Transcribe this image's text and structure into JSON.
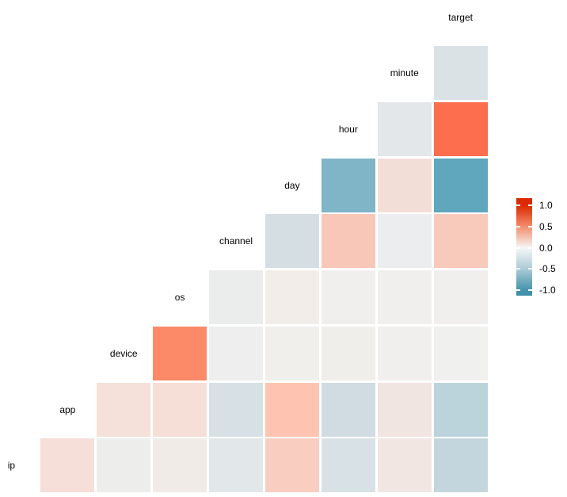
{
  "chart_data": {
    "type": "heatmap",
    "subtype": "correlation-matrix-lower-triangle",
    "title": "",
    "panel_background": "#FFFFFF",
    "variables_diagonal_top_to_bottom": [
      "target",
      "minute",
      "hour",
      "day",
      "channel",
      "os",
      "device",
      "app",
      "ip"
    ],
    "axis_order_left_to_right": [
      "ip",
      "app",
      "device",
      "os",
      "channel",
      "day",
      "hour",
      "minute",
      "target"
    ],
    "value_range": [
      -1.0,
      1.0
    ],
    "legend": {
      "position": "right",
      "tick_labels": [
        "1.0",
        "0.5",
        "0.0",
        "-0.5",
        "-1.0"
      ],
      "tick_values": [
        1.0,
        0.5,
        0.0,
        -0.5,
        -1.0
      ],
      "high_color": "#DC2B02",
      "mid_color": "#F6F7F7",
      "low_color": "#4493AB"
    },
    "cells": [
      {
        "row": "minute",
        "col": "target",
        "value": -0.1,
        "color": "#DBE2E6"
      },
      {
        "row": "hour",
        "col": "minute",
        "value": -0.06,
        "color": "#E3E7E9"
      },
      {
        "row": "hour",
        "col": "target",
        "value": 0.72,
        "color": "#FC6E4E"
      },
      {
        "row": "day",
        "col": "hour",
        "value": -0.5,
        "color": "#80B4C7"
      },
      {
        "row": "day",
        "col": "minute",
        "value": 0.1,
        "color": "#F3DED7"
      },
      {
        "row": "day",
        "col": "target",
        "value": -0.67,
        "color": "#60A6BC"
      },
      {
        "row": "channel",
        "col": "day",
        "value": -0.14,
        "color": "#D4DEE3"
      },
      {
        "row": "channel",
        "col": "hour",
        "value": 0.26,
        "color": "#F8C7B8"
      },
      {
        "row": "channel",
        "col": "minute",
        "value": -0.01,
        "color": "#EBEDEE"
      },
      {
        "row": "channel",
        "col": "target",
        "value": 0.24,
        "color": "#F8CABC"
      },
      {
        "row": "os",
        "col": "channel",
        "value": -0.01,
        "color": "#EBEDED"
      },
      {
        "row": "os",
        "col": "day",
        "value": 0.04,
        "color": "#F2EDE9"
      },
      {
        "row": "os",
        "col": "hour",
        "value": 0.02,
        "color": "#F0EFED"
      },
      {
        "row": "os",
        "col": "minute",
        "value": 0.01,
        "color": "#F0EFEE"
      },
      {
        "row": "os",
        "col": "target",
        "value": 0.02,
        "color": "#F1EFEE"
      },
      {
        "row": "device",
        "col": "os",
        "value": 0.62,
        "color": "#FC8A68"
      },
      {
        "row": "device",
        "col": "channel",
        "value": 0.0,
        "color": "#EDEEED"
      },
      {
        "row": "device",
        "col": "day",
        "value": 0.03,
        "color": "#F1EFEC"
      },
      {
        "row": "device",
        "col": "hour",
        "value": 0.03,
        "color": "#F0EEEB"
      },
      {
        "row": "device",
        "col": "minute",
        "value": 0.02,
        "color": "#F0EFED"
      },
      {
        "row": "device",
        "col": "target",
        "value": 0.01,
        "color": "#F0F0EF"
      },
      {
        "row": "app",
        "col": "device",
        "value": 0.11,
        "color": "#F5E1DA"
      },
      {
        "row": "app",
        "col": "os",
        "value": 0.13,
        "color": "#F6DFD6"
      },
      {
        "row": "app",
        "col": "channel",
        "value": -0.13,
        "color": "#D7E0E4"
      },
      {
        "row": "app",
        "col": "day",
        "value": 0.3,
        "color": "#FEC3B1"
      },
      {
        "row": "app",
        "col": "hour",
        "value": -0.19,
        "color": "#D0DCE2"
      },
      {
        "row": "app",
        "col": "minute",
        "value": 0.07,
        "color": "#F1E5E1"
      },
      {
        "row": "app",
        "col": "target",
        "value": -0.3,
        "color": "#BBD3DB"
      },
      {
        "row": "ip",
        "col": "app",
        "value": 0.13,
        "color": "#F6DFD8"
      },
      {
        "row": "ip",
        "col": "device",
        "value": 0.01,
        "color": "#EDEDEB"
      },
      {
        "row": "ip",
        "col": "os",
        "value": 0.04,
        "color": "#F0EBE7"
      },
      {
        "row": "ip",
        "col": "channel",
        "value": -0.06,
        "color": "#E2E8EA"
      },
      {
        "row": "ip",
        "col": "day",
        "value": 0.22,
        "color": "#F9CEC0"
      },
      {
        "row": "ip",
        "col": "hour",
        "value": -0.11,
        "color": "#D8E2E6"
      },
      {
        "row": "ip",
        "col": "minute",
        "value": 0.07,
        "color": "#F1E6E2"
      },
      {
        "row": "ip",
        "col": "target",
        "value": -0.25,
        "color": "#C4D6DD"
      }
    ]
  }
}
